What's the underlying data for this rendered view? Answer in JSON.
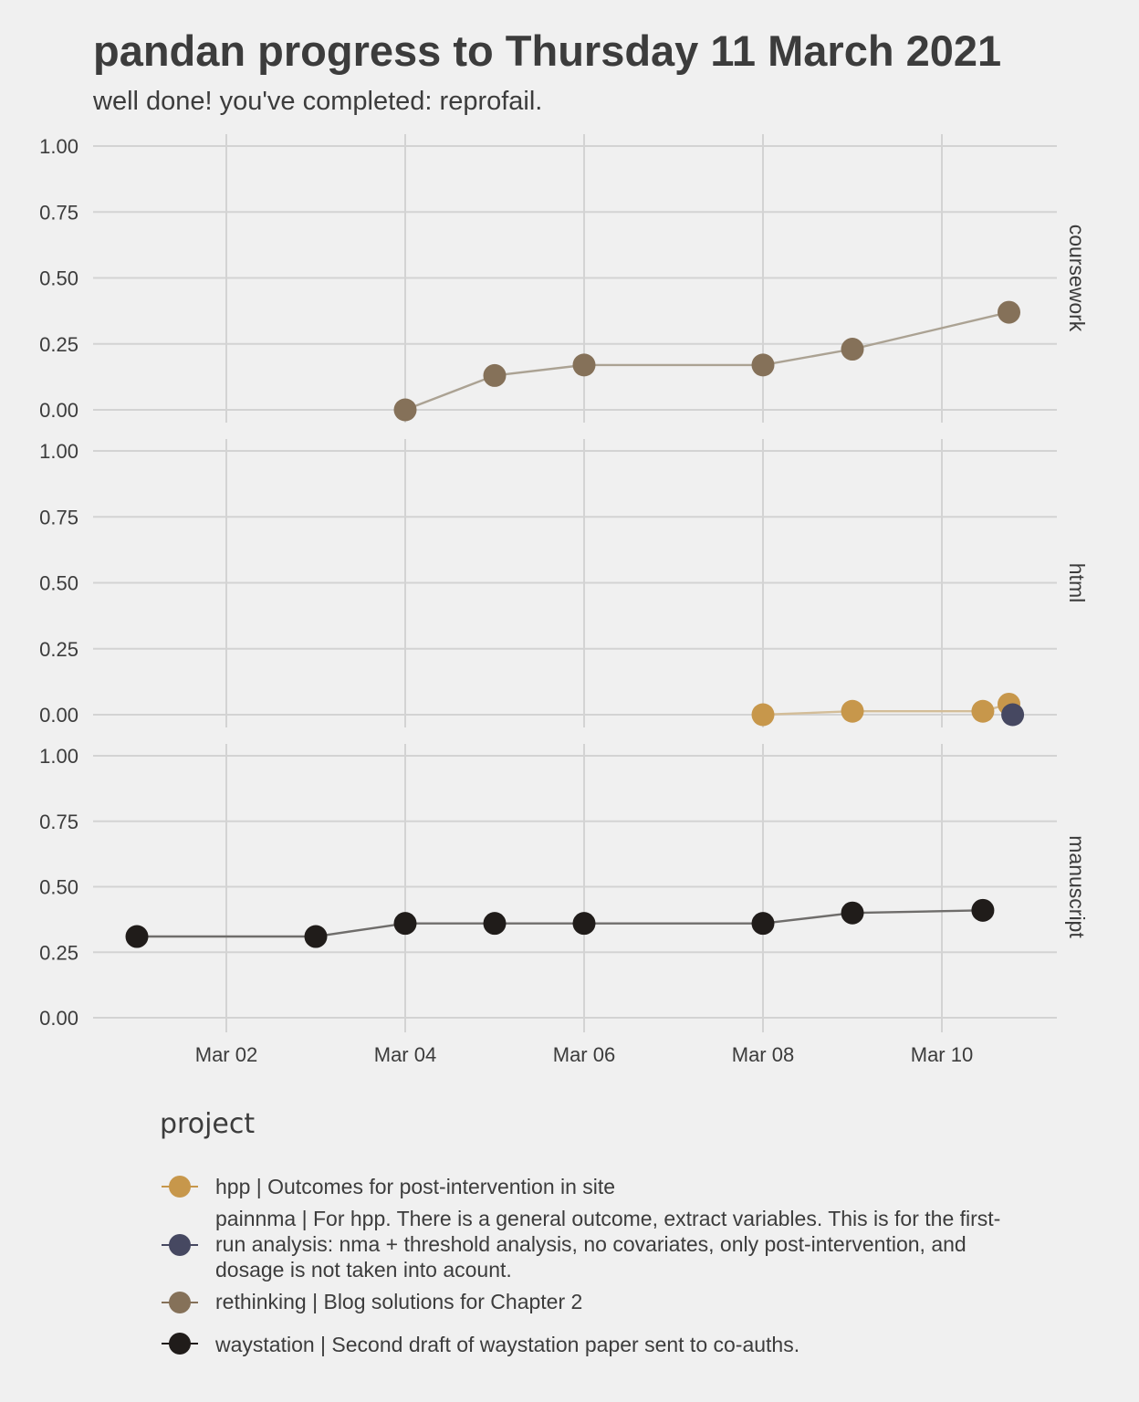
{
  "title": "pandan progress to Thursday 11 March 2021",
  "subtitle": "well done! you've completed: reprofail.",
  "legend": {
    "title": "project",
    "items": [
      {
        "label": "hpp | Outcomes for post-intervention in site",
        "color": "#c7974b"
      },
      {
        "label": "painnma | For hpp. There is a general outcome, extract variables. This is for the first-run analysis: nma + threshold analysis, no covariates, only post-intervention, and dosage is not taken into acount.",
        "color": "#464861"
      },
      {
        "label": "rethinking | Blog solutions for Chapter 2",
        "color": "#857159"
      },
      {
        "label": "waystation | Second draft of waystation paper sent to co-auths.",
        "color": "#201c1a"
      }
    ]
  },
  "chart_data": {
    "type": "line",
    "x_type": "date",
    "xlim": [
      "2021-02-28",
      "2021-03-11"
    ],
    "x_ticks": [
      {
        "date": "2021-03-02",
        "label": "Mar 02"
      },
      {
        "date": "2021-03-04",
        "label": "Mar 04"
      },
      {
        "date": "2021-03-06",
        "label": "Mar 06"
      },
      {
        "date": "2021-03-08",
        "label": "Mar 08"
      },
      {
        "date": "2021-03-10",
        "label": "Mar 10"
      }
    ],
    "ylim": [
      0,
      1
    ],
    "y_ticks": [
      "0.00",
      "0.25",
      "0.50",
      "0.75",
      "1.00"
    ],
    "grid": true,
    "legend_position": "bottom",
    "facets": [
      {
        "label": "coursework",
        "series": [
          {
            "project": "rethinking",
            "color": "#857159",
            "line_color": "#aba293",
            "points": [
              [
                "2021-03-04",
                0.0
              ],
              [
                "2021-03-05",
                0.13
              ],
              [
                "2021-03-06",
                0.17
              ],
              [
                "2021-03-08",
                0.17
              ],
              [
                "2021-03-09",
                0.23
              ],
              [
                "2021-03-10 18:00",
                0.37
              ]
            ]
          }
        ]
      },
      {
        "label": "html",
        "series": [
          {
            "project": "hpp",
            "color": "#c7974b",
            "line_color": "#d3bd98",
            "points": [
              [
                "2021-03-08",
                0.0
              ],
              [
                "2021-03-09",
                0.013
              ],
              [
                "2021-03-10 11:00",
                0.013
              ],
              [
                "2021-03-10 18:00",
                0.04
              ]
            ]
          },
          {
            "project": "painnma",
            "color": "#464861",
            "line_color": "#8f909e",
            "points": [
              [
                "2021-03-10 19:00",
                0.0
              ]
            ]
          }
        ]
      },
      {
        "label": "manuscript",
        "series": [
          {
            "project": "waystation",
            "color": "#201c1a",
            "line_color": "#6f6d6b",
            "points": [
              [
                "2021-03-01",
                0.31
              ],
              [
                "2021-03-03",
                0.31
              ],
              [
                "2021-03-04",
                0.36
              ],
              [
                "2021-03-05",
                0.36
              ],
              [
                "2021-03-06",
                0.36
              ],
              [
                "2021-03-08",
                0.36
              ],
              [
                "2021-03-09",
                0.4
              ],
              [
                "2021-03-10 11:00",
                0.41
              ]
            ]
          }
        ]
      }
    ]
  }
}
